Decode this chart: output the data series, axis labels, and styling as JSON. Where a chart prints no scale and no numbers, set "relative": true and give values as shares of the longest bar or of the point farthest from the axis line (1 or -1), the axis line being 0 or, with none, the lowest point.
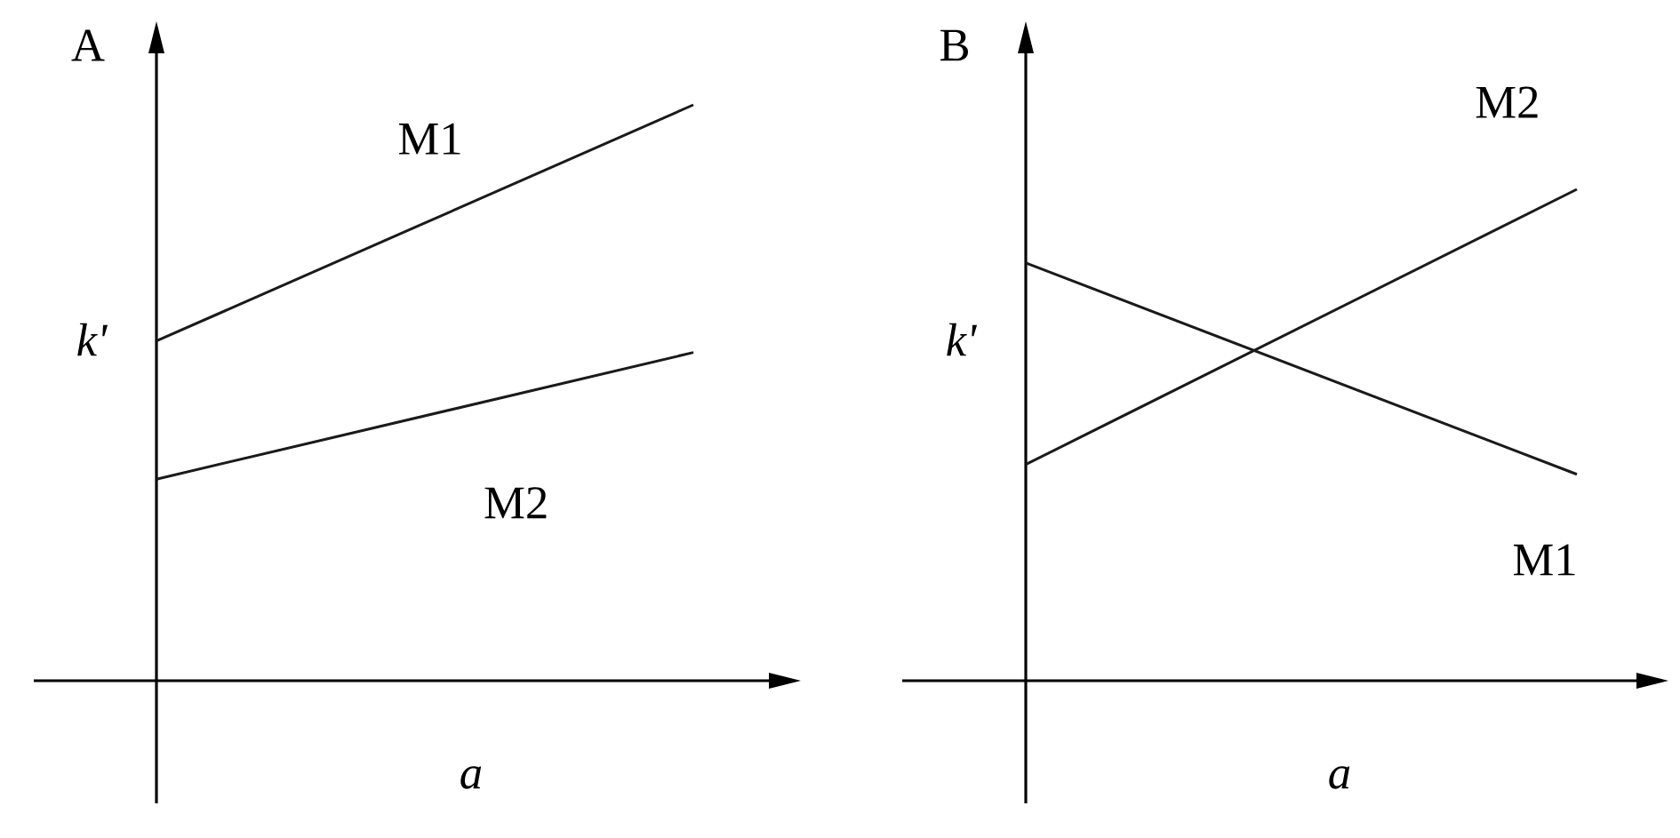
{
  "chart_data": [
    {
      "type": "line",
      "title": "A",
      "xlabel": "a",
      "ylabel": "k'",
      "relative": true,
      "categories": [
        null,
        null
      ],
      "series": [
        {
          "name": "M1",
          "color": "#1a1a1a",
          "values": [
            0.59,
            1
          ]
        },
        {
          "name": "M2",
          "color": "#1a1a1a",
          "values": [
            0.35,
            0.57
          ]
        }
      ]
    },
    {
      "type": "line",
      "title": "B",
      "xlabel": "a",
      "ylabel": "k'",
      "relative": true,
      "categories": [
        null,
        null
      ],
      "series": [
        {
          "name": "M1",
          "color": "#1a1a1a",
          "values": [
            0.85,
            0.42
          ]
        },
        {
          "name": "M2",
          "color": "#1a1a1a",
          "values": [
            0.44,
            1
          ]
        }
      ]
    }
  ]
}
